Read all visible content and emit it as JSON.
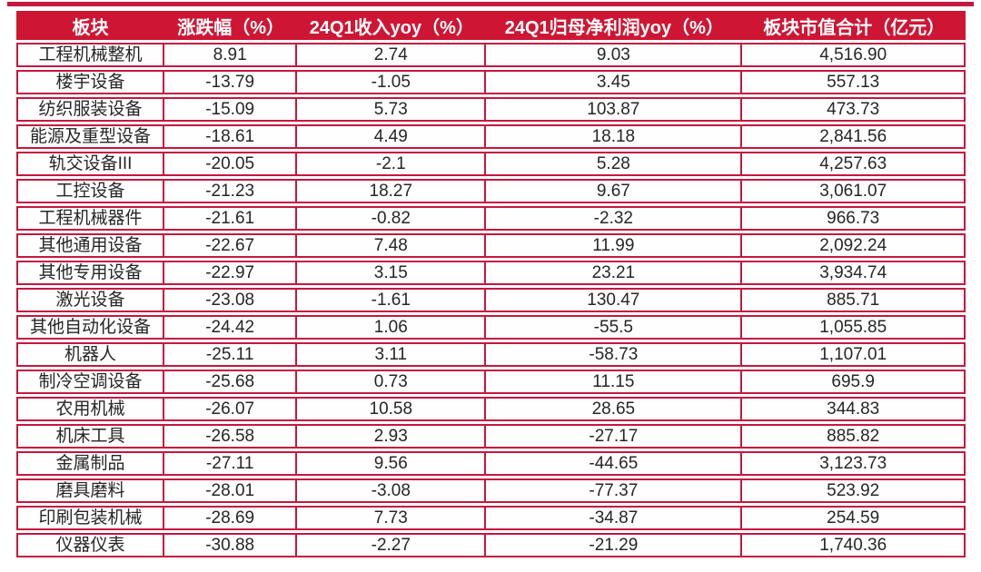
{
  "colors": {
    "header_bg": "#ce1634",
    "border": "#c5173f",
    "header_text": "#ffffff",
    "body_text": "#262626",
    "row_bg": "#fefefe"
  },
  "chart_data": {
    "type": "table",
    "columns": [
      "板块",
      "涨跌幅（%）",
      "24Q1收入yoy（%）",
      "24Q1归母净利润yoy（%）",
      "板块市值合计（亿元）"
    ],
    "rows": [
      [
        "工程机械整机",
        "8.91",
        "2.74",
        "9.03",
        "4,516.90"
      ],
      [
        "楼宇设备",
        "-13.79",
        "-1.05",
        "3.45",
        "557.13"
      ],
      [
        "纺织服装设备",
        "-15.09",
        "5.73",
        "103.87",
        "473.73"
      ],
      [
        "能源及重型设备",
        "-18.61",
        "4.49",
        "18.18",
        "2,841.56"
      ],
      [
        "轨交设备III",
        "-20.05",
        "-2.1",
        "5.28",
        "4,257.63"
      ],
      [
        "工控设备",
        "-21.23",
        "18.27",
        "9.67",
        "3,061.07"
      ],
      [
        "工程机械器件",
        "-21.61",
        "-0.82",
        "-2.32",
        "966.73"
      ],
      [
        "其他通用设备",
        "-22.67",
        "7.48",
        "11.99",
        "2,092.24"
      ],
      [
        "其他专用设备",
        "-22.97",
        "3.15",
        "23.21",
        "3,934.74"
      ],
      [
        "激光设备",
        "-23.08",
        "-1.61",
        "130.47",
        "885.71"
      ],
      [
        "其他自动化设备",
        "-24.42",
        "1.06",
        "-55.5",
        "1,055.85"
      ],
      [
        "机器人",
        "-25.11",
        "3.11",
        "-58.73",
        "1,107.01"
      ],
      [
        "制冷空调设备",
        "-25.68",
        "0.73",
        "11.15",
        "695.9"
      ],
      [
        "农用机械",
        "-26.07",
        "10.58",
        "28.65",
        "344.83"
      ],
      [
        "机床工具",
        "-26.58",
        "2.93",
        "-27.17",
        "885.82"
      ],
      [
        "金属制品",
        "-27.11",
        "9.56",
        "-44.65",
        "3,123.73"
      ],
      [
        "磨具磨料",
        "-28.01",
        "-3.08",
        "-77.37",
        "523.92"
      ],
      [
        "印刷包装机械",
        "-28.69",
        "7.73",
        "-34.87",
        "254.59"
      ],
      [
        "仪器仪表",
        "-30.88",
        "-2.27",
        "-21.29",
        "1,740.36"
      ]
    ],
    "column_keys": [
      "sector",
      "change_pct",
      "q1_revenue_yoy_pct",
      "q1_net_profit_yoy_pct",
      "total_market_cap_100m_cny"
    ]
  }
}
